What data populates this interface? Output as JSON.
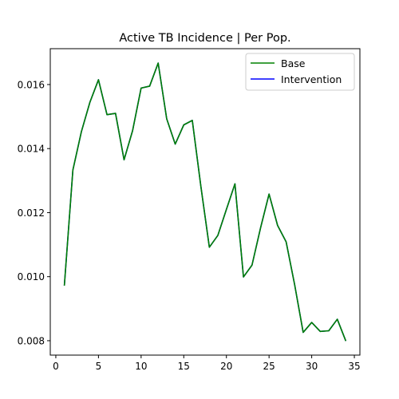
{
  "chart_data": {
    "type": "line",
    "title": "Active TB Incidence | Per Pop.",
    "xlabel": "",
    "ylabel": "",
    "xlim": [
      -0.65,
      35.65
    ],
    "ylim": [
      0.00755,
      0.01712
    ],
    "xticks": [
      0,
      5,
      10,
      15,
      20,
      25,
      30,
      35
    ],
    "yticks": [
      0.008,
      0.01,
      0.012,
      0.014,
      0.016
    ],
    "ytick_labels": [
      "0.008",
      "0.010",
      "0.012",
      "0.014",
      "0.016"
    ],
    "grid": false,
    "legend_position": "top-right",
    "x": [
      1,
      2,
      3,
      4,
      5,
      6,
      7,
      8,
      9,
      10,
      11,
      12,
      13,
      14,
      15,
      16,
      17,
      18,
      19,
      20,
      21,
      22,
      23,
      24,
      25,
      26,
      27,
      28,
      29,
      30,
      31,
      32,
      33,
      34
    ],
    "series": [
      {
        "name": "Base",
        "color": "#008000",
        "values": [
          0.00972,
          0.01333,
          0.01453,
          0.01545,
          0.01615,
          0.01506,
          0.0151,
          0.01365,
          0.01456,
          0.01589,
          0.01595,
          0.01667,
          0.01493,
          0.01414,
          0.01474,
          0.01488,
          0.01283,
          0.01092,
          0.01129,
          0.0121,
          0.0129,
          0.00999,
          0.01036,
          0.01152,
          0.01258,
          0.0116,
          0.01109,
          0.00975,
          0.00826,
          0.00857,
          0.00829,
          0.00831,
          0.00867,
          0.00799
        ]
      },
      {
        "name": "Intervention",
        "color": "#0000ff",
        "values": [
          0.00972,
          0.01333,
          0.01453,
          0.01545,
          0.01615,
          0.01506,
          0.0151,
          0.01365,
          0.01456,
          0.01589,
          0.01595,
          0.01667,
          0.01493,
          0.01414,
          0.01474,
          0.01488,
          0.01283,
          0.01092,
          0.01129,
          0.0121,
          0.0129,
          0.00999,
          0.01036,
          0.01152,
          0.01258,
          0.0116,
          0.01109,
          0.00975,
          0.00826,
          0.00857,
          0.00829,
          0.00831,
          0.00867,
          0.00799
        ]
      }
    ]
  }
}
